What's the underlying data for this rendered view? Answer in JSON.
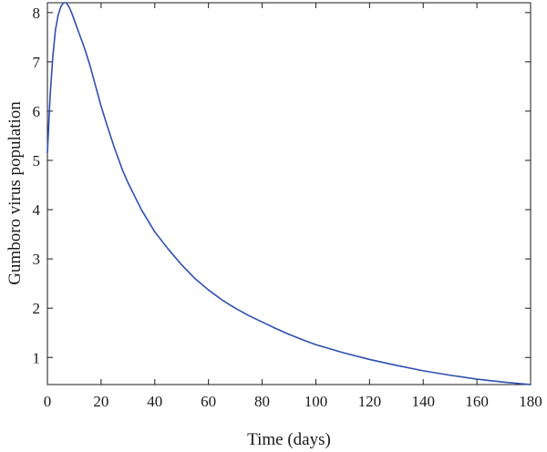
{
  "chart_data": {
    "type": "line",
    "title": "",
    "xlabel": "Time (days)",
    "ylabel": "Gumboro virus population",
    "xlim": [
      0,
      180
    ],
    "ylim": [
      0.45,
      8.2
    ],
    "xticks": [
      "0",
      "20",
      "40",
      "60",
      "80",
      "100",
      "120",
      "140",
      "160",
      "180"
    ],
    "yticks": [
      "1",
      "2",
      "3",
      "4",
      "5",
      "6",
      "7",
      "8"
    ],
    "grid": false,
    "legend": "none",
    "line_color": "#2f4fb0",
    "series": [
      {
        "x": [
          0,
          1,
          2,
          3,
          4,
          5,
          6,
          7,
          8,
          9,
          10,
          12,
          14,
          16,
          18,
          20,
          22,
          25,
          28,
          30,
          35,
          40,
          45,
          50,
          55,
          60,
          65,
          70,
          75,
          80,
          85,
          90,
          95,
          100,
          110,
          120,
          130,
          140,
          150,
          160,
          170,
          180
        ],
        "y": [
          5.15,
          6.3,
          7.1,
          7.65,
          7.95,
          8.12,
          8.2,
          8.2,
          8.12,
          8.0,
          7.85,
          7.55,
          7.25,
          6.9,
          6.5,
          6.1,
          5.75,
          5.25,
          4.8,
          4.55,
          4.0,
          3.55,
          3.2,
          2.88,
          2.6,
          2.37,
          2.17,
          2.0,
          1.85,
          1.72,
          1.59,
          1.47,
          1.36,
          1.26,
          1.1,
          0.96,
          0.84,
          0.73,
          0.64,
          0.56,
          0.5,
          0.45
        ]
      }
    ]
  }
}
